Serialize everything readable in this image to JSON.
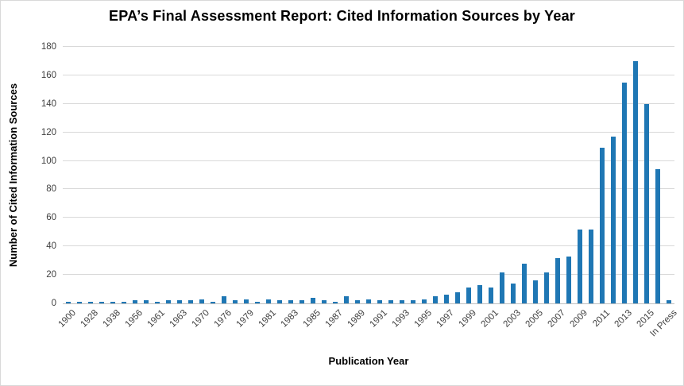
{
  "chart_data": {
    "type": "bar",
    "title": "EPA’s Final Assessment Report: Cited Information Sources by Year",
    "xlabel": "Publication Year",
    "ylabel": "Number of Cited Information Sources",
    "ylim": [
      0,
      180
    ],
    "yticks": [
      0,
      20,
      40,
      60,
      80,
      100,
      120,
      140,
      160,
      180
    ],
    "grid": "horizontal",
    "legend": "none",
    "bar_color": "#1F77B4",
    "gridline_color": "#D9D9D9",
    "axis_color": "#BFBFBF",
    "tick_text_color": "#3F3F3F",
    "categories": [
      "1900",
      "",
      "1928",
      "",
      "1938",
      "",
      "1956",
      "",
      "1961",
      "",
      "1963",
      "",
      "1970",
      "",
      "1976",
      "",
      "1979",
      "",
      "1981",
      "",
      "1983",
      "",
      "1985",
      "",
      "1987",
      "",
      "1989",
      "",
      "1991",
      "",
      "1993",
      "",
      "1995",
      "",
      "1997",
      "",
      "1999",
      "",
      "2001",
      "",
      "2003",
      "",
      "2005",
      "",
      "2007",
      "",
      "2009",
      "",
      "2011",
      "",
      "2013",
      "",
      "2015",
      "",
      "In Press"
    ],
    "values": [
      1,
      1,
      1,
      1,
      1,
      1,
      2,
      2,
      1,
      2,
      2,
      2,
      3,
      1,
      5,
      2,
      3,
      1,
      3,
      2,
      2,
      2,
      4,
      2,
      1,
      5,
      2,
      3,
      2,
      2,
      2,
      2,
      3,
      5,
      6,
      8,
      11,
      13,
      11,
      22,
      14,
      28,
      16,
      22,
      32,
      33,
      52,
      52,
      109,
      117,
      155,
      170,
      140,
      94,
      2
    ]
  }
}
